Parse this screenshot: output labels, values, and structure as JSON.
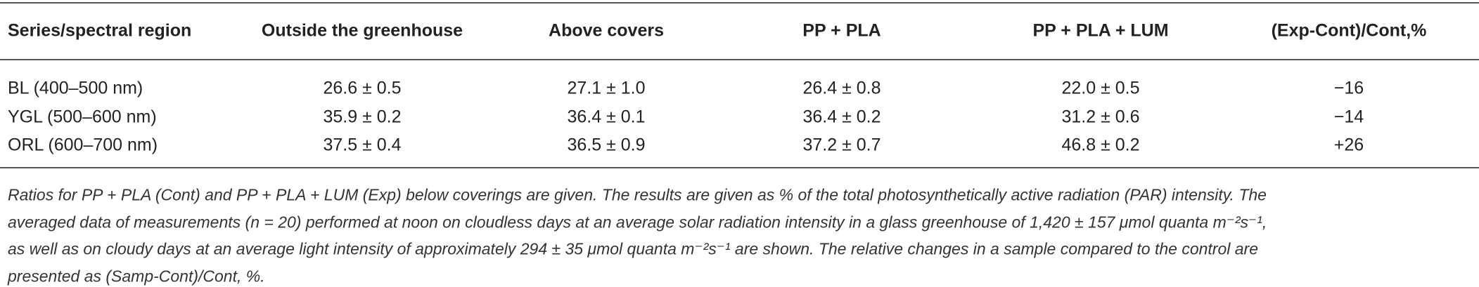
{
  "table": {
    "header": [
      "Series/spectral region",
      "Outside the greenhouse",
      "Above covers",
      "PP + PLA",
      "PP + PLA + LUM",
      "(Exp-Cont)/Cont,%"
    ],
    "rows": [
      [
        "BL (400–500 nm)",
        "26.6 ± 0.5",
        "27.1 ± 1.0",
        "26.4 ± 0.8",
        "22.0 ± 0.5",
        "−16"
      ],
      [
        "YGL (500–600 nm)",
        "35.9 ± 0.2",
        "36.4 ± 0.1",
        "36.4 ± 0.2",
        "31.2 ± 0.6",
        "−14"
      ],
      [
        "ORL (600–700 nm)",
        "37.5 ± 0.4",
        "36.5 ± 0.9",
        "37.2 ± 0.7",
        "46.8 ± 0.2",
        "+26"
      ]
    ],
    "note": [
      "Ratios for PP + PLA (Cont) and PP + PLA + LUM (Exp) below coverings are given. The results are given as % of the total photosynthetically active radiation (PAR) intensity. The",
      "averaged data of measurements (n = 20) performed at noon on cloudless days at an average solar radiation intensity in a glass greenhouse of 1,420 ± 157 μmol quanta m⁻²s⁻¹,",
      "as well as on cloudy days at an average light intensity of approximately 294 ± 35 μmol quanta m⁻²s⁻¹ are shown. The relative changes in a sample compared to the control are",
      "presented as (Samp-Cont)/Cont, %."
    ]
  }
}
